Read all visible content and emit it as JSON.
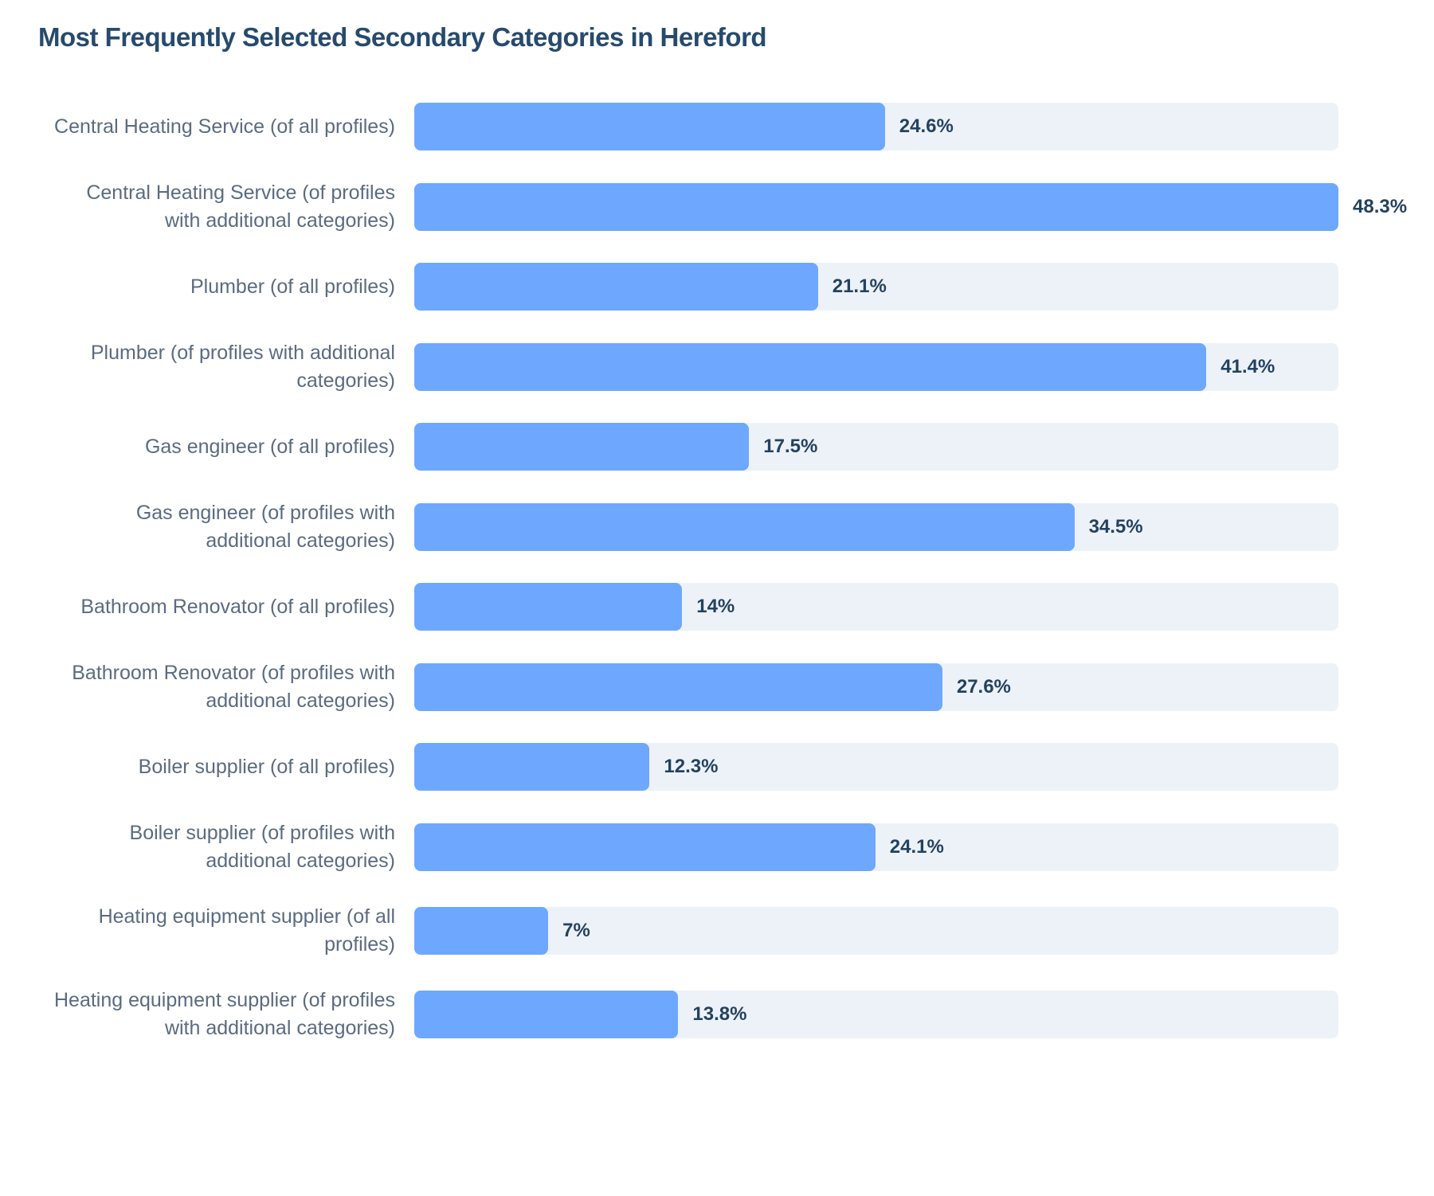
{
  "chart_data": {
    "type": "bar",
    "orientation": "horizontal",
    "title": "Most Frequently Selected Secondary Categories in Hereford",
    "categories": [
      "Central Heating Service (of all profiles)",
      "Central Heating Service (of profiles with additional categories)",
      "Plumber (of all profiles)",
      "Plumber (of profiles with additional categories)",
      "Gas engineer (of all profiles)",
      "Gas engineer (of profiles with additional categories)",
      "Bathroom Renovator (of all profiles)",
      "Bathroom Renovator (of profiles with additional categories)",
      "Boiler supplier (of all profiles)",
      "Boiler supplier (of profiles with additional categories)",
      "Heating equipment supplier (of all profiles)",
      "Heating equipment supplier (of profiles with additional categories)"
    ],
    "values": [
      24.6,
      48.3,
      21.1,
      41.4,
      17.5,
      34.5,
      14,
      27.6,
      12.3,
      24.1,
      7,
      13.8
    ],
    "value_labels": [
      "24.6%",
      "48.3%",
      "21.1%",
      "41.4%",
      "17.5%",
      "34.5%",
      "14%",
      "27.6%",
      "12.3%",
      "24.1%",
      "7%",
      "13.8%"
    ],
    "color": "#6ea8fe",
    "xlim": [
      0,
      48.3
    ]
  }
}
